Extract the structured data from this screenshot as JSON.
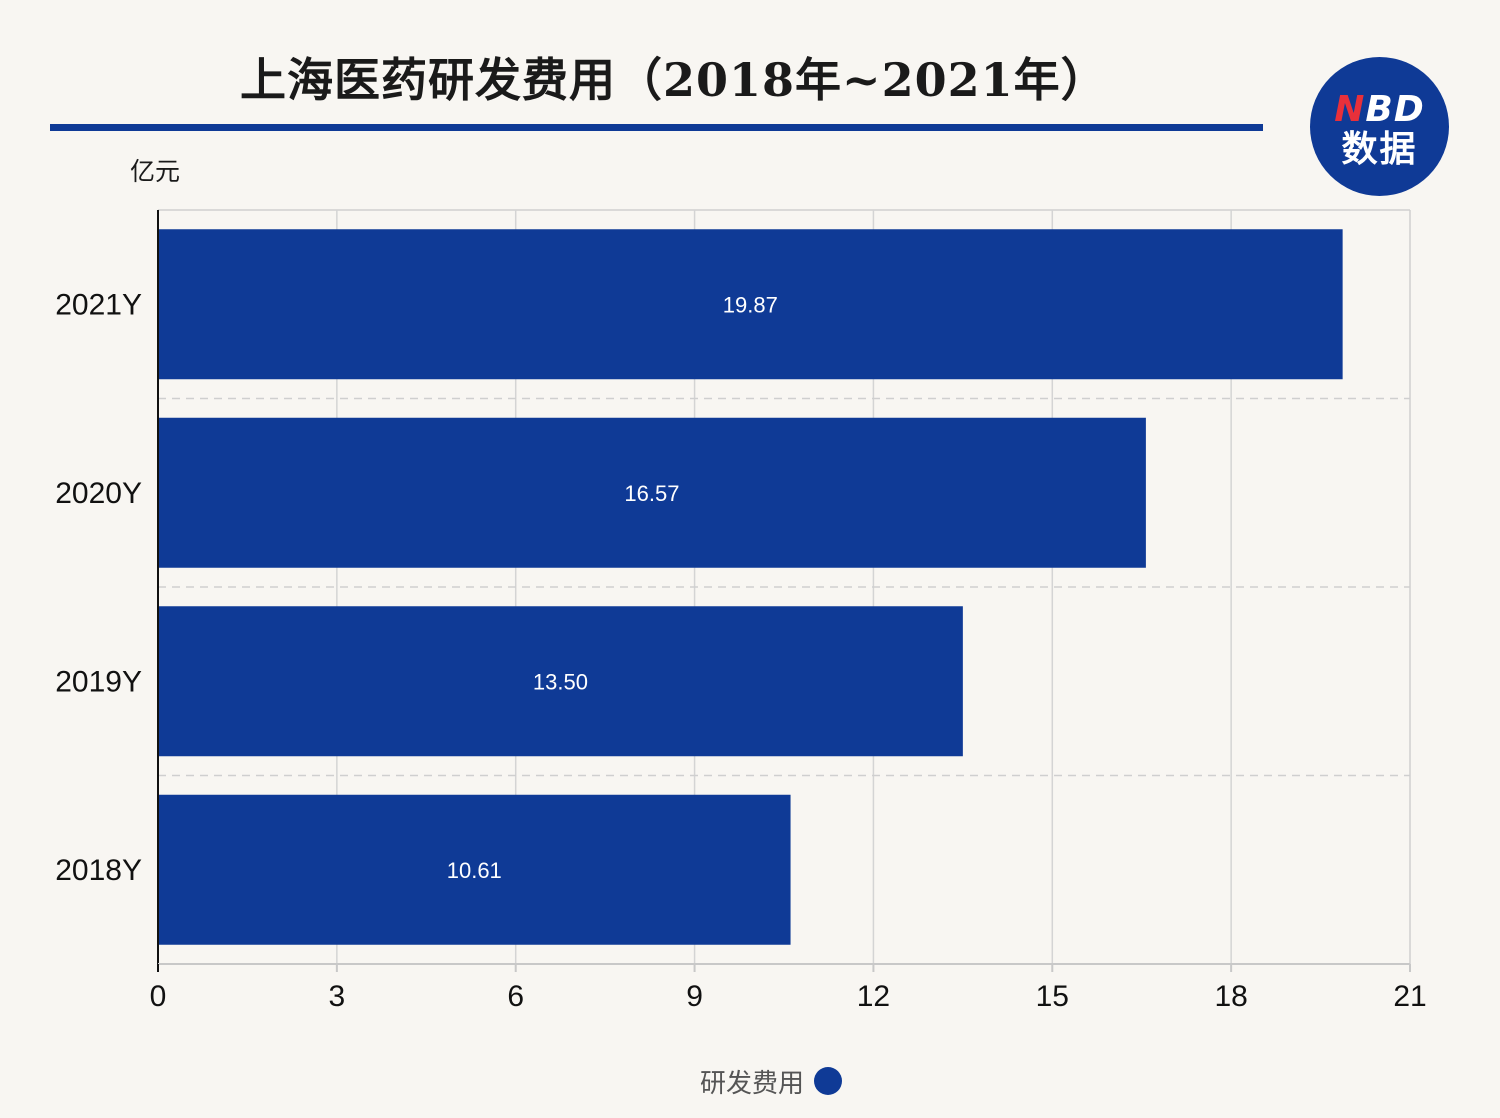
{
  "chart_data": {
    "type": "bar",
    "orientation": "horizontal",
    "title": "上海医药研发费用（2018年~2021年）",
    "unit_label": "亿元",
    "categories": [
      "2021Y",
      "2020Y",
      "2019Y",
      "2018Y"
    ],
    "series": [
      {
        "name": "研发费用",
        "values": [
          19.87,
          16.57,
          13.5,
          10.61
        ],
        "value_labels": [
          "19.87",
          "16.57",
          "13.50",
          "10.61"
        ],
        "color": "#0f3a96"
      }
    ],
    "x_ticks": [
      "0",
      "3",
      "6",
      "9",
      "12",
      "15",
      "18",
      "21"
    ],
    "xlim": [
      0,
      21
    ],
    "grid": true,
    "legend_position": "bottom"
  },
  "branding": {
    "logo_top_accent": "N",
    "logo_top_rest": "BD",
    "logo_bottom": "数据"
  },
  "colors": {
    "bar": "#0f3a96",
    "accent_rule": "#0f3a96",
    "logo_accent": "#e8303a"
  }
}
